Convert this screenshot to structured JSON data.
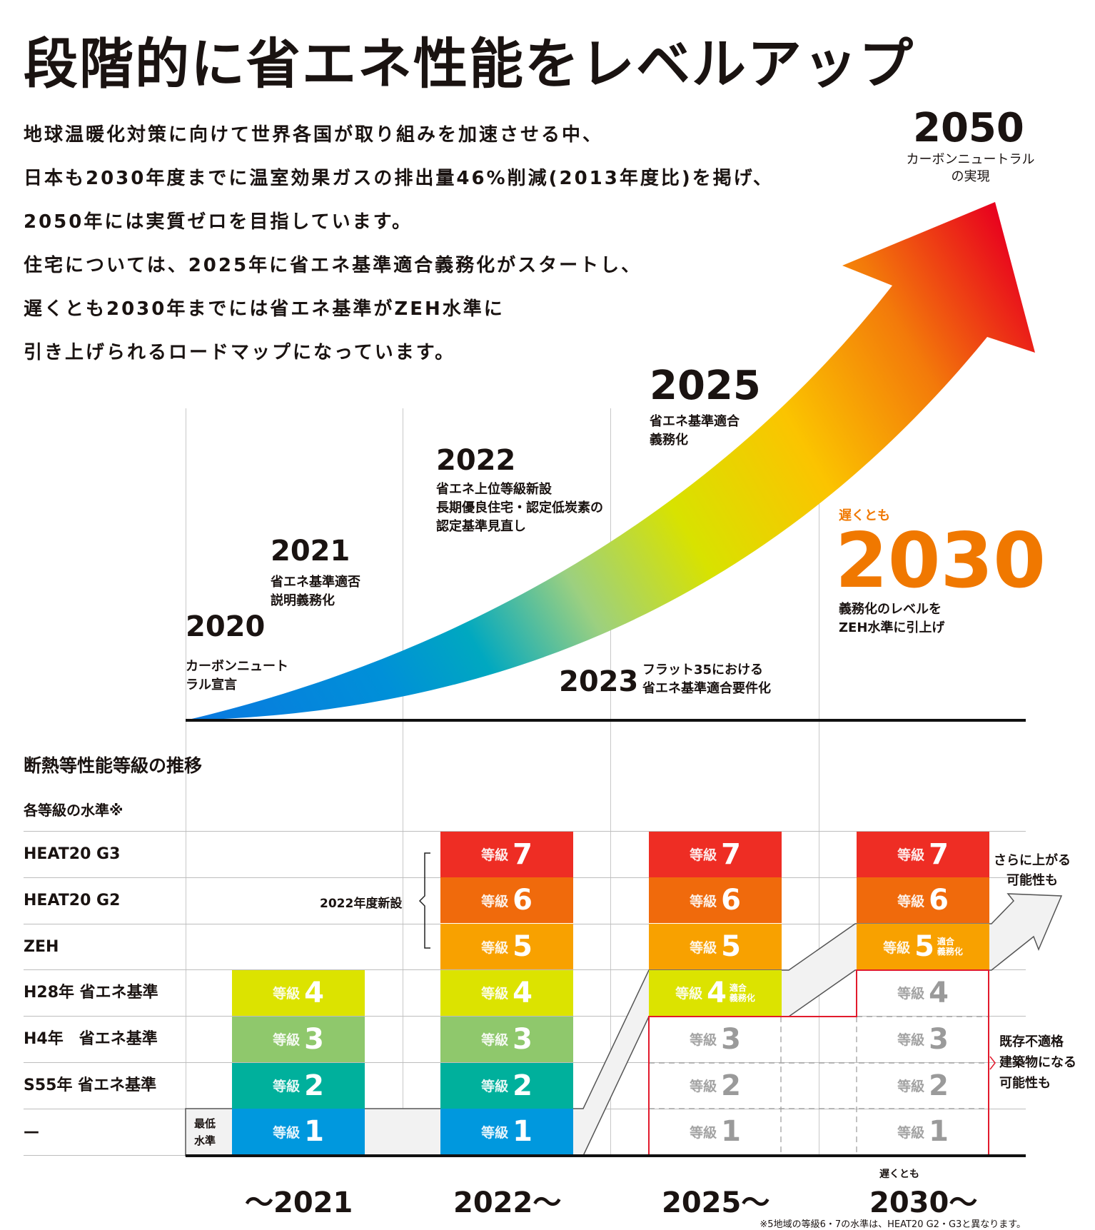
{
  "title": "段階的に省エネ性能をレベルアップ",
  "paragraph": [
    "地球温暖化対策に向けて世界各国が取り組みを加速させる中、",
    "日本も2030年度までに温室効果ガスの排出量46%削減(2013年度比)を掲げ、",
    "2050年には実質ゼロを目指しています。",
    "住宅については、2025年に省エネ基準適合義務化がスタートし、",
    "遅くとも2030年までには省エネ基準がZEH水準に",
    "引き上げられるロードマップになっています。"
  ],
  "timeline": {
    "y2050": {
      "year": "2050",
      "desc": [
        "カーボンニュートラル",
        "の実現"
      ]
    },
    "y2020": {
      "year": "2020",
      "desc": [
        "カーボンニュート",
        "ラル宣言"
      ]
    },
    "y2021": {
      "year": "2021",
      "desc": [
        "省エネ基準適否",
        "説明義務化"
      ]
    },
    "y2022": {
      "year": "2022",
      "desc": [
        "省エネ上位等級新設",
        "長期優良住宅・認定低炭素の",
        "認定基準見直し"
      ]
    },
    "y2025": {
      "year": "2025",
      "desc": [
        "省エネ基準適合",
        "義務化"
      ]
    },
    "y2023": {
      "year": "2023",
      "desc": [
        "フラット35における",
        "省エネ基準適合要件化"
      ]
    },
    "y2030": {
      "prefix": "遅くとも",
      "year": "2030",
      "desc": [
        "義務化のレベルを",
        "ZEH水準に引上げ"
      ]
    }
  },
  "grades": {
    "heading": "断熱等性能等級の推移",
    "subheading": "各等級の水準※",
    "row_labels": [
      "HEAT20 G3",
      "HEAT20 G2",
      "ZEH",
      "H28年 省エネ基準",
      "H4年　省エネ基準",
      "S55年 省エネ基準",
      "—"
    ],
    "grade_word": "等級",
    "new_label": "2022年度新設",
    "minimum_label": [
      "最低",
      "水準"
    ],
    "up_note": [
      "さらに上がる",
      "可能性も"
    ],
    "nonconform_note": [
      "既存不適格",
      "建築物になる",
      "可能性も"
    ],
    "colors": {
      "7": "#ee2d24",
      "6": "#f06a0c",
      "5": "#f8a100",
      "4": "#dce300",
      "3": "#8fc86c",
      "2": "#00b09c",
      "1": "#0098de"
    },
    "columns": [
      {
        "label": "～2021",
        "cells": [
          {
            "grade": 4,
            "style": "fill"
          },
          {
            "grade": 3,
            "style": "fill"
          },
          {
            "grade": 2,
            "style": "fill"
          },
          {
            "grade": 1,
            "style": "fill"
          }
        ]
      },
      {
        "label": "2022～",
        "cells": [
          {
            "grade": 7,
            "style": "fill"
          },
          {
            "grade": 6,
            "style": "fill"
          },
          {
            "grade": 5,
            "style": "fill"
          },
          {
            "grade": 4,
            "style": "fill"
          },
          {
            "grade": 3,
            "style": "fill"
          },
          {
            "grade": 2,
            "style": "fill"
          },
          {
            "grade": 1,
            "style": "fill"
          }
        ]
      },
      {
        "label": "2025～",
        "cells": [
          {
            "grade": 7,
            "style": "fill"
          },
          {
            "grade": 6,
            "style": "fill"
          },
          {
            "grade": 5,
            "style": "fill"
          },
          {
            "grade": 4,
            "style": "fill",
            "tag": [
              "適合",
              "義務化"
            ]
          },
          {
            "grade": 3,
            "style": "outline"
          },
          {
            "grade": 2,
            "style": "outline"
          },
          {
            "grade": 1,
            "style": "outline"
          }
        ]
      },
      {
        "label": "2030～",
        "prefix": "遅くとも",
        "cells": [
          {
            "grade": 7,
            "style": "fill"
          },
          {
            "grade": 6,
            "style": "fill"
          },
          {
            "grade": 5,
            "style": "fill",
            "tag": [
              "適合",
              "義務化"
            ]
          },
          {
            "grade": 4,
            "style": "outline"
          },
          {
            "grade": 3,
            "style": "outline"
          },
          {
            "grade": 2,
            "style": "outline"
          },
          {
            "grade": 1,
            "style": "outline"
          }
        ]
      }
    ],
    "footnote": "※5地域の等級6・7の水準は、HEAT20 G2・G3と異なります。"
  },
  "accent_orange": "#f07800"
}
